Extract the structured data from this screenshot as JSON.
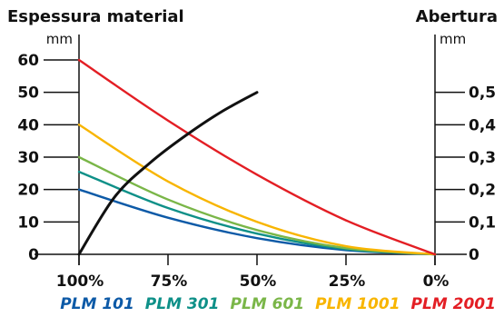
{
  "chart_data": {
    "type": "line",
    "left_title": "Espessura material",
    "right_title": "Abertura",
    "left_unit": "mm",
    "right_unit": "mm",
    "y_left": {
      "min": 0,
      "max": 60,
      "ticks": [
        0,
        10,
        20,
        30,
        40,
        50,
        60
      ],
      "tick_labels": [
        "0",
        "10",
        "20",
        "30",
        "40",
        "50",
        "60"
      ]
    },
    "y_right": {
      "min": 0,
      "max": 0.6,
      "ticks": [
        0,
        0.1,
        0.2,
        0.3,
        0.4,
        0.5
      ],
      "tick_labels": [
        "0",
        "0,1",
        "0,2",
        "0,3",
        "0,4",
        "0,5"
      ]
    },
    "x_axis": {
      "ticks": [
        100,
        75,
        50,
        25,
        0
      ],
      "tick_labels": [
        "100%",
        "75%",
        "50%",
        "25%",
        "0%"
      ],
      "reversed": true
    },
    "series": [
      {
        "name": "PLM 101",
        "color": "#0d5aa7",
        "x": [
          100,
          75,
          50,
          25,
          0
        ],
        "y": [
          20,
          11.3,
          5,
          1.3,
          0
        ]
      },
      {
        "name": "PLM 301",
        "color": "#0e9088",
        "x": [
          100,
          75,
          50,
          25,
          0
        ],
        "y": [
          25.5,
          14.3,
          6.4,
          1.6,
          0
        ]
      },
      {
        "name": "PLM 601",
        "color": "#7ab648",
        "x": [
          100,
          75,
          50,
          25,
          0
        ],
        "y": [
          30,
          16.9,
          7.5,
          1.9,
          0
        ]
      },
      {
        "name": "PLM 1001",
        "color": "#f8b500",
        "x": [
          100,
          75,
          50,
          25,
          0
        ],
        "y": [
          40,
          22.5,
          10,
          2.5,
          0
        ]
      },
      {
        "name": "PLM 2001",
        "color": "#e31e24",
        "x": [
          100,
          75,
          50,
          25,
          0
        ],
        "y": [
          60,
          41.3,
          24.6,
          10.5,
          0
        ]
      }
    ],
    "opening_curve": {
      "color": "#111111",
      "axis": "right",
      "x": [
        100,
        90,
        80,
        70,
        60,
        50
      ],
      "y": [
        0,
        0.177,
        0.283,
        0.367,
        0.44,
        0.5
      ]
    },
    "grid": false,
    "legend": "bottom"
  }
}
